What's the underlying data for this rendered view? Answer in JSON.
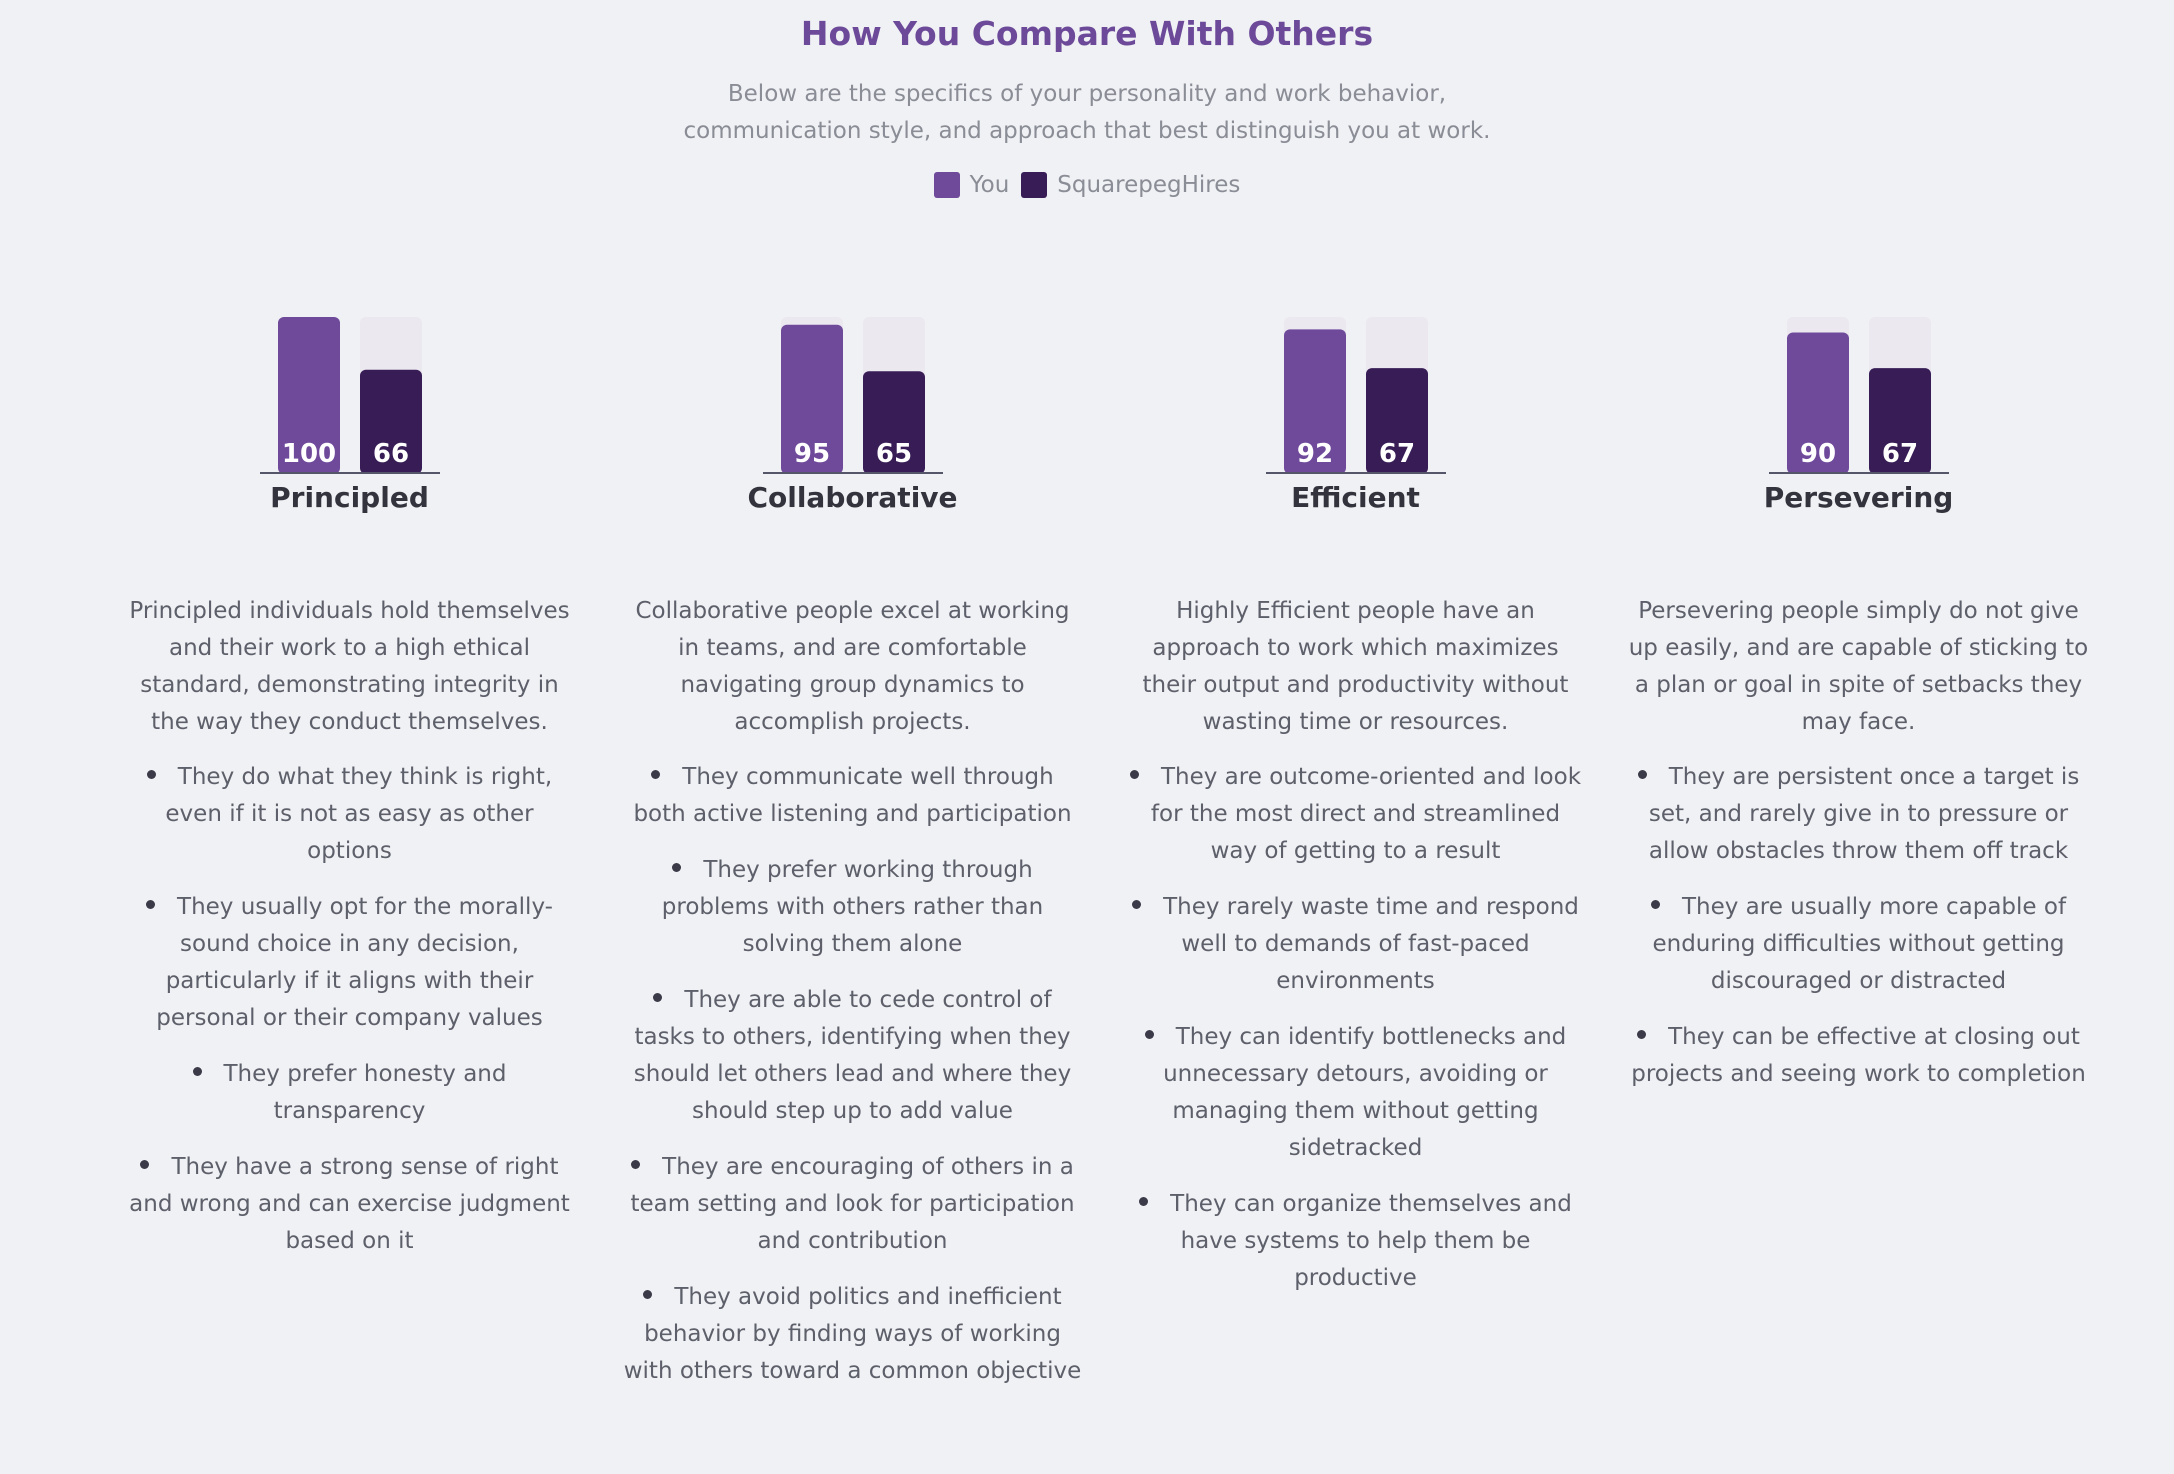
{
  "header": {
    "title": "How You Compare With Others",
    "subtitle": "Below are the specifics of your personality and work behavior, communication style, and approach that best distinguish you at work."
  },
  "colors": {
    "you": "#6f4a9b",
    "others": "#371c55",
    "track": "#ebe8f0",
    "title": "#6c4a99"
  },
  "legend": [
    {
      "label": "You",
      "color": "#6f4a9b"
    },
    {
      "label": "SquarepegHires",
      "color": "#371c55"
    }
  ],
  "chart_data": {
    "type": "bar",
    "categories": [
      "Principled",
      "Collaborative",
      "Efficient",
      "Persevering"
    ],
    "ylim": [
      0,
      100
    ],
    "series": [
      {
        "name": "You",
        "values": [
          100,
          95,
          92,
          90
        ]
      },
      {
        "name": "SquarepegHires",
        "values": [
          66,
          65,
          67,
          67
        ]
      }
    ]
  },
  "traits": [
    {
      "name": "Principled",
      "description": "Principled individuals hold themselves and their work to a high ethical standard, demonstrating integrity in the way they conduct themselves.",
      "bullets": [
        "They do what they think is right, even if it is not as easy as other options",
        "They usually opt for the morally-sound choice in any decision, particularly if it aligns with their personal or their company values",
        "They prefer honesty and transparency",
        "They have a strong sense of right and wrong and can exercise judgment based on it"
      ]
    },
    {
      "name": "Collaborative",
      "description": "Collaborative people excel at working in teams, and are comfortable navigating group dynamics to accomplish projects.",
      "bullets": [
        "They communicate well through both active listening and participation",
        "They prefer working through problems with others rather than solving them alone",
        "They are able to cede control of tasks to others, identifying when they should let others lead and where they should step up to add value",
        "They are encouraging of others in a team setting and look for participation and contribution",
        "They avoid politics and inefficient behavior by finding ways of working with others toward a common objective"
      ]
    },
    {
      "name": "Efficient",
      "description": "Highly Efficient people have an approach to work which maximizes their output and productivity without wasting time or resources.",
      "bullets": [
        "They are outcome-oriented and look for the most direct and streamlined way of getting to a result",
        "They rarely waste time and respond well to demands of fast-paced environments",
        "They can identify bottlenecks and unnecessary detours, avoiding or managing them without getting sidetracked",
        "They can organize themselves and have systems to help them be productive"
      ]
    },
    {
      "name": "Persevering",
      "description": "Persevering people simply do not give up easily, and are capable of sticking to a plan or goal in spite of setbacks they may face.",
      "bullets": [
        "They are persistent once a target is set, and rarely give in to pressure or allow obstacles throw them off track",
        "They are usually more capable of enduring difficulties without getting discouraged or distracted",
        "They can be effective at closing out projects and seeing work to completion"
      ]
    }
  ]
}
